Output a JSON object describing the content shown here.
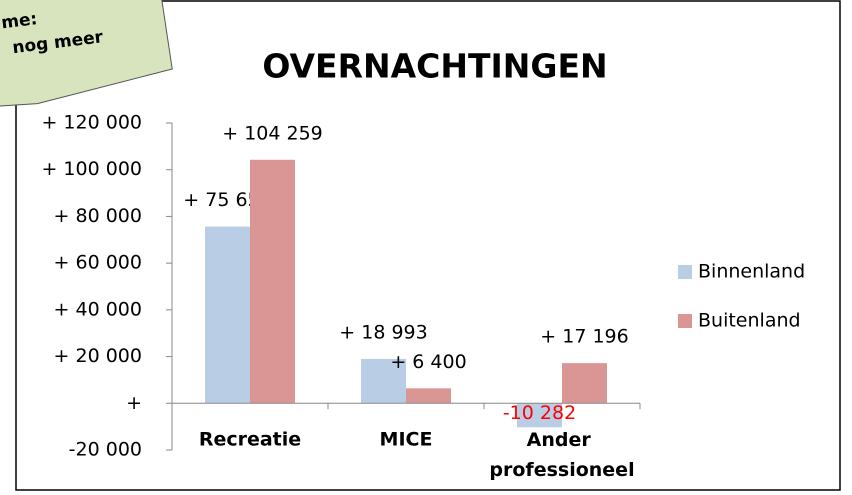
{
  "note": [
    "me:",
    "nog meer"
  ],
  "chart_data": {
    "type": "bar",
    "title": "OVERNACHTINGEN",
    "categories": [
      "Recreatie",
      "MICE",
      "Ander professioneel"
    ],
    "series": [
      {
        "name": "Binnenland",
        "color": "#b9cde5",
        "values": [
          75656,
          18993,
          -10282
        ],
        "value_labels": [
          "+ 75 656",
          "+ 18 993",
          "-10 282"
        ]
      },
      {
        "name": "Buitenland",
        "color": "#d99694",
        "values": [
          104259,
          6400,
          17196
        ],
        "value_labels": [
          "+ 104 259",
          "+ 6 400",
          "+ 17 196"
        ]
      }
    ],
    "negative_label_color": "#ff0000",
    "ylim": [
      -20000,
      120000
    ],
    "yticks": [
      {
        "value": -20000,
        "label": "-20 000"
      },
      {
        "value": 0,
        "label": "+"
      },
      {
        "value": 20000,
        "label": "+ 20 000"
      },
      {
        "value": 40000,
        "label": "+ 40 000"
      },
      {
        "value": 60000,
        "label": "+ 60 000"
      },
      {
        "value": 80000,
        "label": "+ 80 000"
      },
      {
        "value": 100000,
        "label": "+ 100 000"
      },
      {
        "value": 120000,
        "label": "+ 120 000"
      }
    ],
    "legend": "right"
  }
}
